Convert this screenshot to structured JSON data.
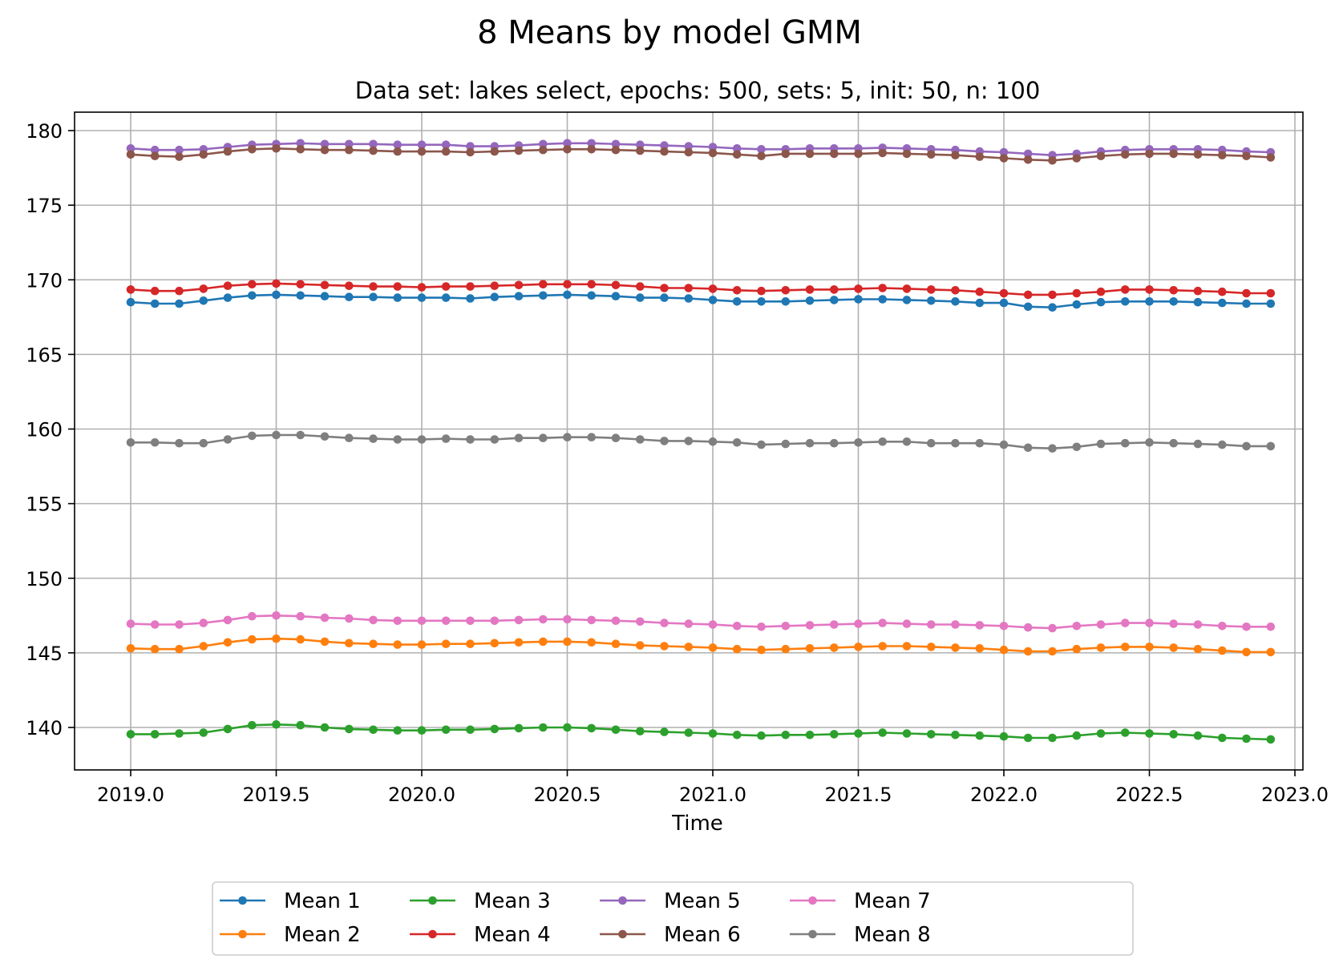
{
  "chart_data": {
    "type": "line",
    "title": "8 Means by model GMM",
    "subtitle": "Data set: lakes select, epochs: 500, sets: 5, init: 50, n: 100",
    "xlabel": "Time",
    "ylabel": "",
    "xlim": [
      2018.8,
      2023.0
    ],
    "ylim": [
      137.3,
      181.2
    ],
    "xticks": [
      2019.0,
      2019.5,
      2020.0,
      2020.5,
      2021.0,
      2021.5,
      2022.0,
      2022.5,
      2023.0
    ],
    "xtick_labels": [
      "2019.0",
      "2019.5",
      "2020.0",
      "2020.5",
      "2021.0",
      "2021.5",
      "2022.0",
      "2022.5",
      "2023.0"
    ],
    "yticks": [
      140,
      145,
      150,
      155,
      160,
      165,
      170,
      175,
      180
    ],
    "ytick_labels": [
      "140",
      "145",
      "150",
      "155",
      "160",
      "165",
      "170",
      "175",
      "180"
    ],
    "grid": true,
    "legend_position": "below plot, 5 columns",
    "x": [
      2019.0,
      2019.0833,
      2019.1667,
      2019.25,
      2019.3333,
      2019.4167,
      2019.5,
      2019.5833,
      2019.6667,
      2019.75,
      2019.8333,
      2019.9167,
      2020.0,
      2020.0833,
      2020.1667,
      2020.25,
      2020.3333,
      2020.4167,
      2020.5,
      2020.5833,
      2020.6667,
      2020.75,
      2020.8333,
      2020.9167,
      2021.0,
      2021.0833,
      2021.1667,
      2021.25,
      2021.3333,
      2021.4167,
      2021.5,
      2021.5833,
      2021.6667,
      2021.75,
      2021.8333,
      2021.9167,
      2022.0,
      2022.0833,
      2022.1667,
      2022.25,
      2022.3333,
      2022.4167,
      2022.5,
      2022.5833,
      2022.6667,
      2022.75,
      2022.8333,
      2022.9167
    ],
    "series": [
      {
        "name": "Mean 1",
        "color": "#1f77b4",
        "values": [
          168.5,
          168.4,
          168.4,
          168.6,
          168.8,
          168.95,
          169.0,
          168.95,
          168.9,
          168.85,
          168.85,
          168.8,
          168.8,
          168.8,
          168.75,
          168.85,
          168.9,
          168.95,
          169.0,
          168.95,
          168.9,
          168.8,
          168.8,
          168.75,
          168.65,
          168.55,
          168.55,
          168.55,
          168.6,
          168.65,
          168.7,
          168.7,
          168.65,
          168.6,
          168.55,
          168.45,
          168.45,
          168.2,
          168.15,
          168.35,
          168.5,
          168.55,
          168.55,
          168.55,
          168.5,
          168.45,
          168.4,
          168.4
        ]
      },
      {
        "name": "Mean 2",
        "color": "#ff7f0e",
        "values": [
          145.3,
          145.25,
          145.25,
          145.45,
          145.7,
          145.9,
          145.95,
          145.9,
          145.75,
          145.65,
          145.6,
          145.55,
          145.55,
          145.6,
          145.6,
          145.65,
          145.7,
          145.75,
          145.75,
          145.7,
          145.6,
          145.5,
          145.45,
          145.4,
          145.35,
          145.25,
          145.2,
          145.25,
          145.3,
          145.35,
          145.4,
          145.45,
          145.45,
          145.4,
          145.35,
          145.3,
          145.2,
          145.1,
          145.1,
          145.25,
          145.35,
          145.4,
          145.4,
          145.35,
          145.25,
          145.15,
          145.05,
          145.05
        ]
      },
      {
        "name": "Mean 3",
        "color": "#2ca02c",
        "values": [
          139.55,
          139.55,
          139.6,
          139.65,
          139.9,
          140.15,
          140.2,
          140.15,
          140.0,
          139.9,
          139.85,
          139.8,
          139.8,
          139.85,
          139.85,
          139.9,
          139.95,
          140.0,
          140.0,
          139.95,
          139.85,
          139.75,
          139.7,
          139.65,
          139.6,
          139.5,
          139.45,
          139.5,
          139.5,
          139.55,
          139.6,
          139.65,
          139.6,
          139.55,
          139.5,
          139.45,
          139.4,
          139.3,
          139.3,
          139.45,
          139.6,
          139.65,
          139.6,
          139.55,
          139.45,
          139.3,
          139.25,
          139.2
        ]
      },
      {
        "name": "Mean 4",
        "color": "#d62728",
        "values": [
          169.35,
          169.25,
          169.25,
          169.4,
          169.6,
          169.7,
          169.75,
          169.7,
          169.65,
          169.6,
          169.55,
          169.55,
          169.5,
          169.55,
          169.55,
          169.6,
          169.65,
          169.7,
          169.7,
          169.7,
          169.65,
          169.55,
          169.45,
          169.45,
          169.4,
          169.3,
          169.25,
          169.3,
          169.35,
          169.35,
          169.4,
          169.45,
          169.4,
          169.35,
          169.3,
          169.2,
          169.1,
          169.0,
          169.0,
          169.1,
          169.2,
          169.35,
          169.35,
          169.3,
          169.25,
          169.2,
          169.1,
          169.1
        ]
      },
      {
        "name": "Mean 5",
        "color": "#9467bd",
        "values": [
          178.8,
          178.7,
          178.7,
          178.75,
          178.9,
          179.05,
          179.1,
          179.15,
          179.1,
          179.1,
          179.1,
          179.05,
          179.05,
          179.05,
          178.95,
          178.95,
          179.0,
          179.1,
          179.15,
          179.15,
          179.1,
          179.05,
          179.0,
          178.95,
          178.9,
          178.8,
          178.75,
          178.75,
          178.8,
          178.8,
          178.8,
          178.85,
          178.8,
          178.75,
          178.7,
          178.6,
          178.55,
          178.45,
          178.35,
          178.45,
          178.6,
          178.7,
          178.75,
          178.75,
          178.75,
          178.7,
          178.6,
          178.55
        ]
      },
      {
        "name": "Mean 6",
        "color": "#8c564b",
        "values": [
          178.4,
          178.3,
          178.25,
          178.4,
          178.6,
          178.75,
          178.8,
          178.75,
          178.7,
          178.7,
          178.65,
          178.6,
          178.6,
          178.6,
          178.55,
          178.6,
          178.65,
          178.7,
          178.75,
          178.75,
          178.7,
          178.65,
          178.6,
          178.55,
          178.5,
          178.4,
          178.3,
          178.45,
          178.45,
          178.45,
          178.45,
          178.5,
          178.45,
          178.4,
          178.35,
          178.25,
          178.15,
          178.05,
          178.0,
          178.15,
          178.3,
          178.4,
          178.45,
          178.45,
          178.4,
          178.35,
          178.3,
          178.2
        ]
      },
      {
        "name": "Mean 7",
        "color": "#e377c2",
        "values": [
          146.95,
          146.9,
          146.9,
          147.0,
          147.2,
          147.45,
          147.5,
          147.45,
          147.35,
          147.3,
          147.2,
          147.15,
          147.15,
          147.15,
          147.15,
          147.15,
          147.2,
          147.25,
          147.25,
          147.2,
          147.15,
          147.1,
          147.0,
          146.95,
          146.9,
          146.8,
          146.75,
          146.8,
          146.85,
          146.9,
          146.95,
          147.0,
          146.95,
          146.9,
          146.9,
          146.85,
          146.8,
          146.7,
          146.65,
          146.8,
          146.9,
          147.0,
          147.0,
          146.95,
          146.9,
          146.8,
          146.75,
          146.75
        ]
      },
      {
        "name": "Mean 8",
        "color": "#7f7f7f",
        "values": [
          159.1,
          159.1,
          159.05,
          159.05,
          159.3,
          159.55,
          159.6,
          159.6,
          159.5,
          159.4,
          159.35,
          159.3,
          159.3,
          159.35,
          159.3,
          159.3,
          159.4,
          159.4,
          159.45,
          159.45,
          159.4,
          159.3,
          159.2,
          159.2,
          159.15,
          159.1,
          158.95,
          159.0,
          159.05,
          159.05,
          159.1,
          159.15,
          159.15,
          159.05,
          159.05,
          159.05,
          158.95,
          158.75,
          158.7,
          158.8,
          159.0,
          159.05,
          159.1,
          159.05,
          159.0,
          158.95,
          158.85,
          158.85
        ]
      }
    ]
  }
}
